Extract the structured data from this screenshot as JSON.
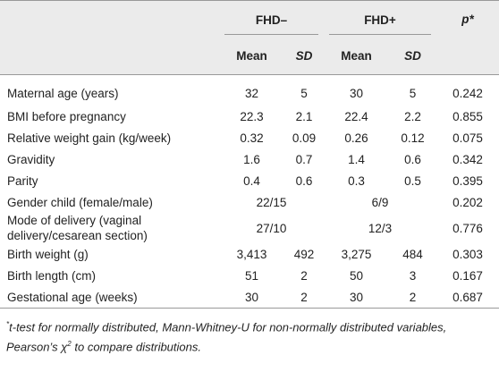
{
  "table": {
    "groups": [
      "FHD–",
      "FHD+"
    ],
    "p_header": "p*",
    "subheaders": [
      "Mean",
      "SD",
      "Mean",
      "SD"
    ],
    "rows": [
      [
        "Maternal age (years)",
        "32",
        "5",
        "30",
        "5",
        "0.242"
      ],
      [
        "BMI before pregnancy",
        "22.3",
        "2.1",
        "22.4",
        "2.2",
        "0.855"
      ],
      [
        "Relative weight gain (kg/week)",
        "0.32",
        "0.09",
        "0.26",
        "0.12",
        "0.075"
      ],
      [
        "Gravidity",
        "1.6",
        "0.7",
        "1.4",
        "0.6",
        "0.342"
      ],
      [
        "Parity",
        "0.4",
        "0.6",
        "0.3",
        "0.5",
        "0.395"
      ],
      [
        "Gender child (female/male)",
        "22/15",
        "6/9",
        "0.202"
      ],
      [
        "Mode of delivery (vaginal delivery/cesarean section)",
        "27/10",
        "12/3",
        "0.776"
      ],
      [
        "Birth weight (g)",
        "3,413",
        "492",
        "3,275",
        "484",
        "0.303"
      ],
      [
        "Birth length (cm)",
        "51",
        "2",
        "50",
        "3",
        "0.167"
      ],
      [
        "Gestational age (weeks)",
        "30",
        "2",
        "30",
        "2",
        "0.687"
      ]
    ]
  },
  "footnote": {
    "marker": "*",
    "text": "t-test for normally distributed, Mann-Whitney-U for non-normally distributed variables, Pearson’s χ",
    "sup": "2",
    "tail": " to compare distributions."
  }
}
